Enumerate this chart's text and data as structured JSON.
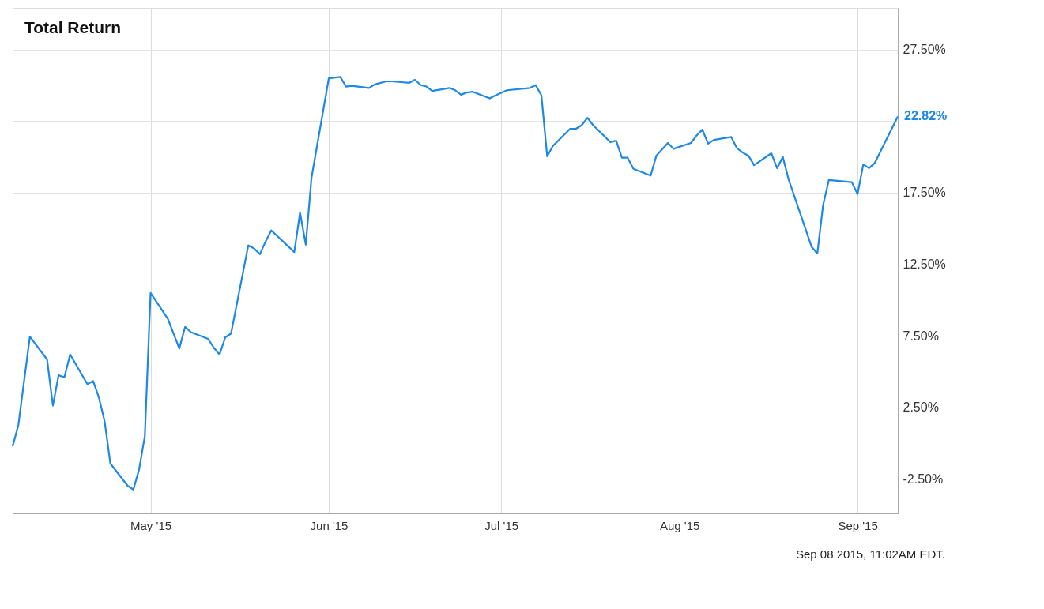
{
  "chart_data": {
    "type": "line",
    "title": "Total Return",
    "x": [
      "2015-04-07",
      "2015-04-08",
      "2015-04-10",
      "2015-04-13",
      "2015-04-14",
      "2015-04-15",
      "2015-04-16",
      "2015-04-17",
      "2015-04-20",
      "2015-04-21",
      "2015-04-22",
      "2015-04-23",
      "2015-04-24",
      "2015-04-27",
      "2015-04-28",
      "2015-04-29",
      "2015-04-30",
      "2015-05-01",
      "2015-05-04",
      "2015-05-06",
      "2015-05-07",
      "2015-05-08",
      "2015-05-11",
      "2015-05-12",
      "2015-05-13",
      "2015-05-14",
      "2015-05-15",
      "2015-05-18",
      "2015-05-19",
      "2015-05-20",
      "2015-05-21",
      "2015-05-22",
      "2015-05-26",
      "2015-05-27",
      "2015-05-28",
      "2015-05-29",
      "2015-06-01",
      "2015-06-03",
      "2015-06-04",
      "2015-06-05",
      "2015-06-08",
      "2015-06-09",
      "2015-06-11",
      "2015-06-12",
      "2015-06-15",
      "2015-06-16",
      "2015-06-17",
      "2015-06-18",
      "2015-06-19",
      "2015-06-22",
      "2015-06-23",
      "2015-06-24",
      "2015-06-25",
      "2015-06-26",
      "2015-06-29",
      "2015-06-30",
      "2015-07-02",
      "2015-07-06",
      "2015-07-07",
      "2015-07-08",
      "2015-07-09",
      "2015-07-10",
      "2015-07-13",
      "2015-07-14",
      "2015-07-15",
      "2015-07-16",
      "2015-07-17",
      "2015-07-20",
      "2015-07-21",
      "2015-07-22",
      "2015-07-23",
      "2015-07-24",
      "2015-07-27",
      "2015-07-28",
      "2015-07-30",
      "2015-07-31",
      "2015-08-03",
      "2015-08-04",
      "2015-08-05",
      "2015-08-06",
      "2015-08-07",
      "2015-08-10",
      "2015-08-11",
      "2015-08-12",
      "2015-08-13",
      "2015-08-14",
      "2015-08-17",
      "2015-08-18",
      "2015-08-19",
      "2015-08-20",
      "2015-08-24",
      "2015-08-25",
      "2015-08-26",
      "2015-08-27",
      "2015-08-31",
      "2015-09-01",
      "2015-09-02",
      "2015-09-03",
      "2015-09-04",
      "2015-09-08"
    ],
    "series": [
      {
        "color": "#1e88e5",
        "values": [
          -0.22,
          1.28,
          7.45,
          5.84,
          2.63,
          4.75,
          4.6,
          6.2,
          4.13,
          4.34,
          3.2,
          1.54,
          -1.41,
          -2.97,
          -3.23,
          -1.83,
          0.5,
          10.5,
          8.69,
          6.62,
          8.12,
          7.76,
          7.29,
          6.67,
          6.2,
          7.4,
          7.66,
          13.82,
          13.61,
          13.2,
          14.08,
          14.86,
          13.35,
          16.1,
          13.87,
          18.54,
          25.48,
          25.58,
          24.91,
          24.96,
          24.81,
          25.06,
          25.27,
          25.27,
          25.17,
          25.38,
          25.01,
          24.91,
          24.6,
          24.81,
          24.65,
          24.34,
          24.49,
          24.55,
          24.08,
          24.29,
          24.65,
          24.81,
          25.01,
          24.29,
          20.04,
          20.76,
          21.96,
          21.96,
          22.21,
          22.73,
          22.21,
          21.02,
          21.13,
          19.94,
          19.94,
          19.16,
          18.69,
          20.09,
          20.97,
          20.56,
          20.97,
          21.49,
          21.9,
          20.92,
          21.18,
          21.39,
          20.61,
          20.3,
          20.09,
          19.42,
          20.25,
          19.21,
          19.99,
          18.43,
          13.72,
          13.25,
          16.62,
          18.38,
          18.23,
          17.4,
          19.47,
          19.21,
          19.57,
          22.82
        ]
      }
    ],
    "xlim": [
      "2015-04-07",
      "2015-09-08"
    ],
    "xticks": [
      {
        "value": "2015-05-01",
        "label": "May '15"
      },
      {
        "value": "2015-06-01",
        "label": "Jun '15"
      },
      {
        "value": "2015-07-01",
        "label": "Jul '15"
      },
      {
        "value": "2015-08-01",
        "label": "Aug '15"
      },
      {
        "value": "2015-09-01",
        "label": "Sep '15"
      }
    ],
    "ylim": [
      -4.9,
      30.4
    ],
    "yticks": [
      {
        "value": -2.5,
        "label": "-2.50%"
      },
      {
        "value": 2.5,
        "label": "2.50%"
      },
      {
        "value": 7.5,
        "label": "7.50%"
      },
      {
        "value": 12.5,
        "label": "12.50%"
      },
      {
        "value": 17.5,
        "label": "17.50%"
      },
      {
        "value": 22.5,
        "label": null
      },
      {
        "value": 27.5,
        "label": "27.50%"
      }
    ],
    "grid": true,
    "marker": "none",
    "line_style": "solid",
    "annotations": [
      {
        "text": "22.82%",
        "x": "2015-09-08",
        "y": 22.82
      },
      "Sep 08 2015, 11:02AM EDT."
    ]
  }
}
